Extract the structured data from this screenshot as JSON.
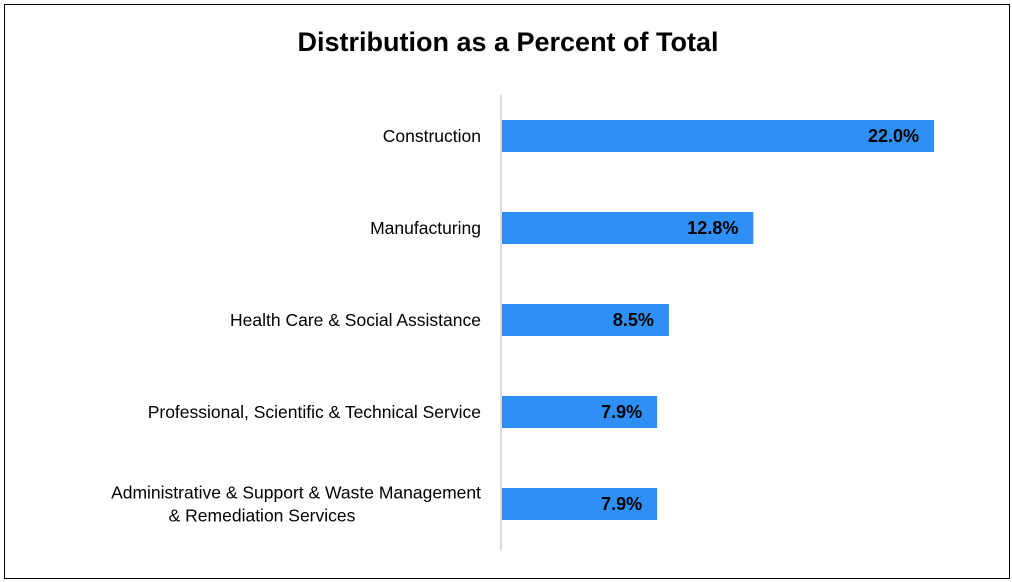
{
  "chart_data": {
    "type": "bar",
    "orientation": "horizontal",
    "title": "Distribution as a Percent of Total",
    "categories": [
      "Construction",
      "Manufacturing",
      "Health Care & Social Assistance",
      "Professional, Scientific & Technical Service",
      "Administrative & Support & Waste Management & Remediation Services"
    ],
    "category_lines": [
      [
        "Construction"
      ],
      [
        "Manufacturing"
      ],
      [
        "Health Care & Social Assistance"
      ],
      [
        "Professional, Scientific & Technical Service"
      ],
      [
        "Administrative & Support & Waste Management",
        "& Remediation Services"
      ]
    ],
    "values": [
      22.0,
      12.8,
      8.5,
      7.9,
      7.9
    ],
    "data_labels": [
      "22.0%",
      "12.8%",
      "8.5%",
      "7.9%",
      "7.9%"
    ],
    "unit": "%",
    "bar_color": "#2E8FF5",
    "xlim": [
      0,
      22.0
    ],
    "grid": false,
    "legend": "none"
  }
}
